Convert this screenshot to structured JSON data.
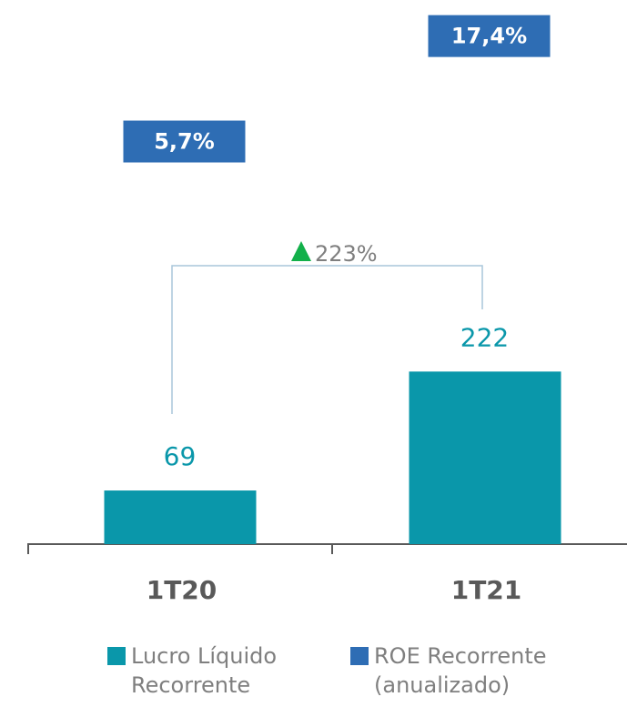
{
  "chart_data": {
    "type": "bar",
    "categories": [
      "1T20",
      "1T21"
    ],
    "series": [
      {
        "name": "Lucro Líquido Recorrente",
        "color": "#0a97aa",
        "values": [
          69,
          222
        ]
      },
      {
        "name": "ROE Recorrente (anualizado)",
        "color": "#2e6db4",
        "values": [
          5.7,
          17.4
        ],
        "value_labels": [
          "5,7%",
          "17,4%"
        ],
        "axis": "y2"
      }
    ],
    "ylim": [
      0,
      700
    ],
    "y2lim": [
      0,
      21.4
    ],
    "annotation": "223%"
  }
}
